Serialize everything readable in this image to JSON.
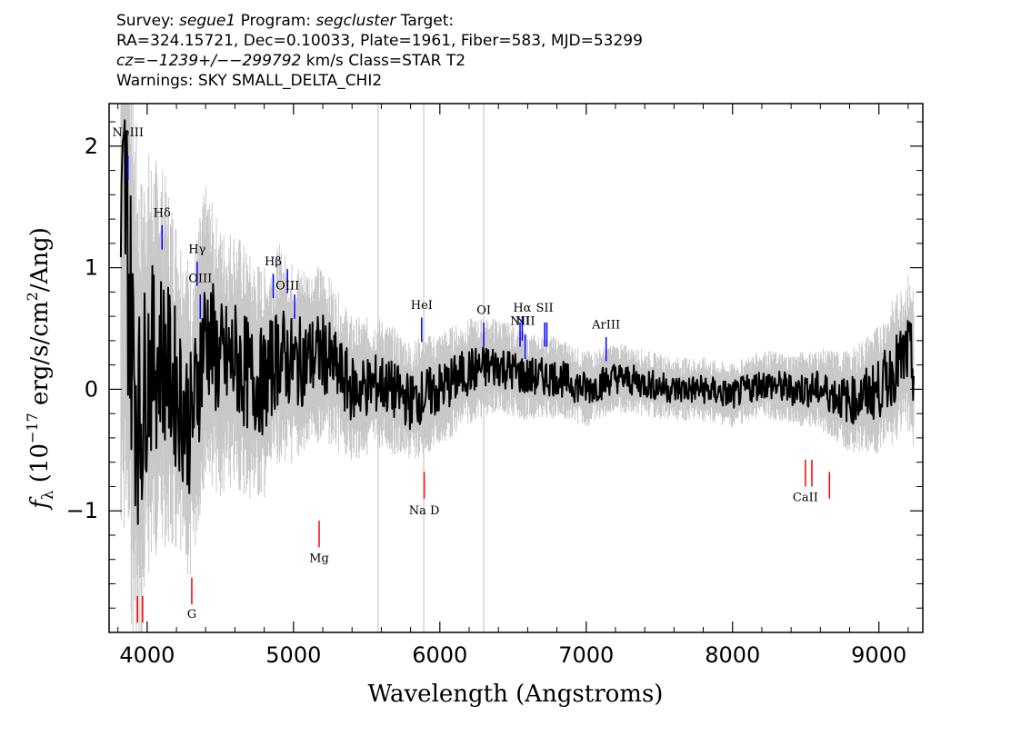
{
  "header": {
    "line1": {
      "survey_label": "Survey: ",
      "survey_value": "segue1",
      "program_label": " Program: ",
      "program_value": "segcluster",
      "target_label": " Target:"
    },
    "line2": "RA=324.15721, Dec=0.10033, Plate=1961, Fiber=583, MJD=53299",
    "line3": {
      "cz_value": "cz=−1239+/−−299792",
      "cz_rest": " km/s Class=STAR T2"
    },
    "line4": "Warnings: SKY SMALL_DELTA_CHI2"
  },
  "chart_data": {
    "type": "line",
    "xlabel": "Wavelength (Angstroms)",
    "ylabel_parts": {
      "f": "f",
      "sub": "λ",
      "pre": " (10",
      "exp1": "−17",
      "mid": " erg/s/cm",
      "exp2": "2",
      "post": "/Ang)"
    },
    "xlim": [
      3740,
      9300
    ],
    "ylim": [
      -2.0,
      2.35
    ],
    "x_ticks": [
      4000,
      5000,
      6000,
      7000,
      8000,
      9000
    ],
    "x_tick_labels": [
      "4000",
      "5000",
      "6000",
      "7000",
      "8000",
      "9000"
    ],
    "y_ticks": [
      -1,
      0,
      1,
      2
    ],
    "y_tick_labels": [
      "−1",
      "0",
      "1",
      "2"
    ],
    "series": [
      {
        "role": "flux",
        "color": "#000000",
        "x": [
          3820,
          3850,
          3900,
          3950,
          4000,
          4100,
          4200,
          4300,
          4400,
          4500,
          4600,
          4700,
          4800,
          4900,
          5000,
          5200,
          5400,
          5600,
          5800,
          6000,
          6200,
          6400,
          6600,
          6800,
          7000,
          7200,
          7400,
          7600,
          7800,
          8000,
          8200,
          8400,
          8600,
          8800,
          9000,
          9200,
          9240
        ],
        "y": [
          0.9,
          1.6,
          0.3,
          -0.3,
          0.2,
          0.3,
          0.0,
          -0.3,
          0.5,
          0.2,
          0.25,
          0.1,
          0.05,
          0.3,
          0.2,
          0.3,
          0.0,
          0.05,
          -0.1,
          0.0,
          0.15,
          0.2,
          0.1,
          0.1,
          0.0,
          0.1,
          0.05,
          0.0,
          0.0,
          -0.05,
          0.05,
          0.0,
          0.0,
          -0.1,
          0.0,
          0.3,
          0.15
        ]
      },
      {
        "role": "noise-envelope",
        "color": "#c8c8c8",
        "x": [
          3820,
          3850,
          3900,
          3950,
          4000,
          4100,
          4200,
          4300,
          4400,
          4500,
          4600,
          4700,
          4800,
          4900,
          5000,
          5200,
          5400,
          5600,
          5800,
          6000,
          6200,
          6400,
          6600,
          6800,
          7000,
          7200,
          7400,
          7600,
          7800,
          8000,
          8200,
          8400,
          8600,
          8800,
          9000,
          9200,
          9240
        ],
        "y": [
          2.3,
          2.3,
          2.0,
          1.7,
          1.5,
          1.3,
          1.2,
          1.1,
          1.0,
          0.95,
          0.9,
          0.85,
          0.8,
          0.75,
          0.7,
          0.6,
          0.5,
          0.45,
          0.42,
          0.4,
          0.36,
          0.33,
          0.3,
          0.28,
          0.26,
          0.24,
          0.23,
          0.22,
          0.22,
          0.22,
          0.23,
          0.25,
          0.28,
          0.35,
          0.45,
          0.55,
          0.6
        ]
      }
    ],
    "lines": [
      {
        "label": "NeIII",
        "x": 3869,
        "top": 1.92,
        "len": 0.2,
        "color": "#0000ff",
        "ly": 2.08
      },
      {
        "label": "Hδ",
        "x": 4102,
        "top": 1.35,
        "len": 0.2,
        "color": "#0000ff",
        "ly": 1.42
      },
      {
        "label": "Hγ",
        "x": 4341,
        "top": 1.05,
        "len": 0.2,
        "color": "#0000ff",
        "ly": 1.12
      },
      {
        "label": "OIII",
        "x": 4363,
        "top": 0.78,
        "len": 0.2,
        "color": "#0000ff",
        "ly": 0.88
      },
      {
        "label": "Hβ",
        "x": 4861,
        "top": 0.95,
        "len": 0.2,
        "color": "#0000ff",
        "ly": 1.02
      },
      {
        "label": "OIII",
        "x": 4959,
        "top": 0.99,
        "len": 0.2,
        "color": "#0000ff",
        "ly": 0.82
      },
      {
        "label": "",
        "x": 5007,
        "top": 0.78,
        "len": 0.2,
        "color": "#0000ff",
        "ly": 0.0
      },
      {
        "label": "HeI",
        "x": 5876,
        "top": 0.59,
        "len": 0.2,
        "color": "#0000ff",
        "ly": 0.66
      },
      {
        "label": "OI",
        "x": 6300,
        "top": 0.55,
        "len": 0.2,
        "color": "#0000ff",
        "ly": 0.62
      },
      {
        "label": "NII",
        "x": 6548,
        "top": 0.55,
        "len": 0.2,
        "color": "#0000ff",
        "ly": 0.53
      },
      {
        "label": "Hα",
        "x": 6563,
        "top": 0.6,
        "len": 0.2,
        "color": "#0000ff",
        "ly": 0.64
      },
      {
        "label": "NII",
        "x": 6583,
        "top": 0.45,
        "len": 0.2,
        "color": "#0000ff",
        "ly": 0.53
      },
      {
        "label": "SII",
        "x": 6716,
        "top": 0.55,
        "len": 0.2,
        "color": "#0000ff",
        "ly": 0.64
      },
      {
        "label": "",
        "x": 6731,
        "top": 0.55,
        "len": 0.2,
        "color": "#0000ff",
        "ly": 0.0
      },
      {
        "label": "ArIII",
        "x": 7136,
        "top": 0.43,
        "len": 0.2,
        "color": "#0000ff",
        "ly": 0.5
      },
      {
        "label": "",
        "x": 3934,
        "top": -1.7,
        "len": 0.22,
        "color": "#ff0000",
        "ly": 0.0
      },
      {
        "label": "",
        "x": 3969,
        "top": -1.7,
        "len": 0.22,
        "color": "#ff0000",
        "ly": 0.0
      },
      {
        "label": "G",
        "x": 4305,
        "top": -1.55,
        "len": 0.22,
        "color": "#ff0000",
        "ly": -1.88
      },
      {
        "label": "Mg",
        "x": 5175,
        "top": -1.08,
        "len": 0.22,
        "color": "#ff0000",
        "ly": -1.42
      },
      {
        "label": "Na D",
        "x": 5893,
        "top": -0.68,
        "len": 0.22,
        "color": "#ff0000",
        "ly": -1.03
      },
      {
        "label": "CaII",
        "x": 8498,
        "top": -0.58,
        "len": 0.22,
        "color": "#ff0000",
        "ly": -0.92
      },
      {
        "label": "",
        "x": 8542,
        "top": -0.58,
        "len": 0.22,
        "color": "#ff0000",
        "ly": 0.0
      },
      {
        "label": "",
        "x": 8662,
        "top": -0.68,
        "len": 0.22,
        "color": "#ff0000",
        "ly": 0.0
      }
    ]
  }
}
